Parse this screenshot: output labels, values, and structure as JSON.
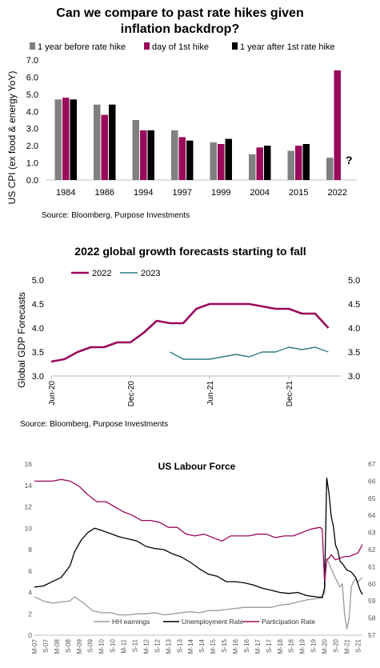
{
  "chart_data": [
    {
      "type": "bar",
      "title": "Can we compare to past rate hikes given inflation backdrop?",
      "title_lines": [
        "Can we compare to past rate hikes given",
        "inflation backdrop?"
      ],
      "ylabel": "US CPI (ex food & energy YoY)",
      "ylim": [
        0,
        7
      ],
      "yticks": [
        "0.0",
        "1.0",
        "2.0",
        "3.0",
        "4.0",
        "5.0",
        "6.0",
        "7.0"
      ],
      "categories": [
        "1984",
        "1986",
        "1994",
        "1997",
        "1999",
        "2004",
        "2015",
        "2022"
      ],
      "series": [
        {
          "name": "1 year before rate hike",
          "color": "#808080",
          "values": [
            4.7,
            4.4,
            3.5,
            2.9,
            2.2,
            1.5,
            1.7,
            1.3
          ]
        },
        {
          "name": "day of 1st hike",
          "color": "#9a0a5b",
          "values": [
            4.8,
            3.8,
            2.9,
            2.5,
            2.1,
            1.9,
            2.0,
            6.4
          ]
        },
        {
          "name": "1 year after 1st rate hike",
          "color": "#000000",
          "values": [
            4.7,
            4.4,
            2.9,
            2.3,
            2.4,
            2.0,
            2.1,
            null
          ]
        }
      ],
      "annotation": "?",
      "source": "Source: Bloomberg, Purpose Investments",
      "legend_position": "top"
    },
    {
      "type": "line",
      "title": "2022 global growth forecasts starting to fall",
      "ylabel": "Global GDP Forecasts",
      "ylim": [
        3.0,
        5.0
      ],
      "yticks": [
        "3.0",
        "3.5",
        "4.0",
        "4.5",
        "5.0"
      ],
      "x_ticks": [
        "Jun-20",
        "Dec-20",
        "Jun-21",
        "Dec-21"
      ],
      "x_months": [
        "2020-06",
        "2020-07",
        "2020-08",
        "2020-09",
        "2020-10",
        "2020-11",
        "2020-12",
        "2021-01",
        "2021-02",
        "2021-03",
        "2021-04",
        "2021-05",
        "2021-06",
        "2021-07",
        "2021-08",
        "2021-09",
        "2021-10",
        "2021-11",
        "2021-12",
        "2022-01",
        "2022-02",
        "2022-03",
        "2022-04"
      ],
      "series": [
        {
          "name": "2022",
          "color": "#9a0a5b",
          "values": [
            3.3,
            3.35,
            3.5,
            3.6,
            3.6,
            3.7,
            3.7,
            3.9,
            4.15,
            4.1,
            4.1,
            4.4,
            4.5,
            4.5,
            4.5,
            4.5,
            4.45,
            4.4,
            4.4,
            4.3,
            4.3,
            4.0,
            null
          ]
        },
        {
          "name": "2023",
          "color": "#2e7d7d",
          "values": [
            null,
            null,
            null,
            null,
            null,
            null,
            null,
            null,
            null,
            3.5,
            3.35,
            3.35,
            3.35,
            3.4,
            3.45,
            3.4,
            3.5,
            3.5,
            3.6,
            3.55,
            3.6,
            3.5,
            null
          ]
        }
      ],
      "source": "Source: Bloomberg, Purpose Investments",
      "legend_position": "top-left",
      "secondary_axis": true
    },
    {
      "type": "line",
      "title": "US Labour Force",
      "ylim_left": [
        0,
        16
      ],
      "yticks_left": [
        "0",
        "2",
        "4",
        "6",
        "8",
        "10",
        "12",
        "14",
        "16"
      ],
      "ylim_right": [
        57,
        67
      ],
      "yticks_right": [
        "57",
        "58",
        "59",
        "60",
        "61",
        "62",
        "63",
        "64",
        "65",
        "66",
        "67"
      ],
      "x_ticks": [
        "M-07",
        "S-07",
        "M-08",
        "S-08",
        "M-09",
        "S-09",
        "M-10",
        "S-10",
        "M-11",
        "S-11",
        "M-12",
        "S-12",
        "M-13",
        "S-13",
        "M-14",
        "S-14",
        "M-15",
        "S-15",
        "M-16",
        "S-16",
        "M-17",
        "S-17",
        "M-18",
        "S-18",
        "M-19",
        "S-19",
        "M-20",
        "S-20",
        "M-21",
        "S-21"
      ],
      "x_range": [
        2007.2,
        2021.9
      ],
      "series": [
        {
          "name": "HH earnings",
          "color": "#9a9a9a",
          "axis": "left",
          "x": [
            2007.2,
            2007.6,
            2008.0,
            2008.4,
            2008.8,
            2009.0,
            2009.4,
            2009.8,
            2010.2,
            2010.6,
            2011.0,
            2011.4,
            2011.8,
            2012.2,
            2012.6,
            2013.0,
            2013.4,
            2013.8,
            2014.2,
            2014.6,
            2015.0,
            2015.4,
            2015.8,
            2016.2,
            2016.6,
            2017.0,
            2017.4,
            2017.8,
            2018.2,
            2018.6,
            2019.0,
            2019.4,
            2019.8,
            2020.0,
            2020.2,
            2020.3,
            2020.5,
            2020.7,
            2020.9,
            2021.0,
            2021.1,
            2021.2,
            2021.3,
            2021.4,
            2021.5,
            2021.6,
            2021.7,
            2021.8,
            2021.9
          ],
          "values": [
            3.6,
            3.2,
            3.0,
            3.1,
            3.2,
            3.6,
            3.0,
            2.3,
            2.1,
            2.1,
            1.9,
            1.9,
            2.0,
            2.0,
            2.1,
            1.9,
            2.0,
            2.1,
            2.2,
            2.1,
            2.3,
            2.3,
            2.4,
            2.5,
            2.6,
            2.6,
            2.6,
            2.6,
            2.8,
            2.9,
            3.1,
            3.3,
            3.4,
            3.5,
            3.9,
            7.2,
            6.2,
            5.3,
            4.5,
            4.8,
            2.0,
            0.6,
            1.5,
            4.5,
            5.0,
            5.3,
            5.0,
            5.2,
            5.4
          ]
        },
        {
          "name": "Unemployment Rate",
          "color": "#000000",
          "axis": "left",
          "x": [
            2007.2,
            2007.6,
            2008.0,
            2008.4,
            2008.8,
            2009.0,
            2009.3,
            2009.6,
            2009.9,
            2010.2,
            2010.6,
            2011.0,
            2011.4,
            2011.8,
            2012.2,
            2012.6,
            2013.0,
            2013.4,
            2013.8,
            2014.2,
            2014.6,
            2015.0,
            2015.4,
            2015.8,
            2016.2,
            2016.6,
            2017.0,
            2017.4,
            2017.8,
            2018.2,
            2018.6,
            2019.0,
            2019.4,
            2019.8,
            2020.1,
            2020.2,
            2020.3,
            2020.4,
            2020.5,
            2020.6,
            2020.7,
            2020.8,
            2020.9,
            2021.0,
            2021.2,
            2021.4,
            2021.6,
            2021.8,
            2021.9
          ],
          "values": [
            4.5,
            4.6,
            5.0,
            5.4,
            6.5,
            7.8,
            8.9,
            9.6,
            10.0,
            9.8,
            9.5,
            9.2,
            9.0,
            8.8,
            8.3,
            8.1,
            8.0,
            7.6,
            7.3,
            6.8,
            6.2,
            5.7,
            5.5,
            5.0,
            5.0,
            4.9,
            4.7,
            4.4,
            4.2,
            4.0,
            3.9,
            4.0,
            3.7,
            3.6,
            3.5,
            4.4,
            14.7,
            13.3,
            11.1,
            10.2,
            8.4,
            7.9,
            6.9,
            6.7,
            6.1,
            5.9,
            5.4,
            4.2,
            3.8
          ]
        },
        {
          "name": "Participation Rate",
          "color": "#9a0a5b",
          "axis": "right",
          "x": [
            2007.2,
            2007.6,
            2008.0,
            2008.4,
            2008.8,
            2009.2,
            2009.6,
            2010.0,
            2010.4,
            2010.8,
            2011.2,
            2011.6,
            2012.0,
            2012.4,
            2012.8,
            2013.2,
            2013.6,
            2014.0,
            2014.4,
            2014.8,
            2015.2,
            2015.6,
            2016.0,
            2016.4,
            2016.8,
            2017.2,
            2017.6,
            2018.0,
            2018.4,
            2018.8,
            2019.2,
            2019.6,
            2020.0,
            2020.1,
            2020.2,
            2020.3,
            2020.4,
            2020.5,
            2020.7,
            2020.9,
            2021.1,
            2021.3,
            2021.5,
            2021.7,
            2021.9
          ],
          "values": [
            66.0,
            66.0,
            66.0,
            66.1,
            66.0,
            65.7,
            65.2,
            64.8,
            64.8,
            64.5,
            64.2,
            64.0,
            63.7,
            63.7,
            63.6,
            63.3,
            63.3,
            62.9,
            62.8,
            62.9,
            62.7,
            62.5,
            62.8,
            62.8,
            62.8,
            62.9,
            62.9,
            62.7,
            62.8,
            62.8,
            63.0,
            63.2,
            63.3,
            63.2,
            60.2,
            61.4,
            61.5,
            61.7,
            61.4,
            61.5,
            61.6,
            61.6,
            61.7,
            61.8,
            62.3
          ]
        }
      ],
      "legend_position": "bottom"
    }
  ]
}
